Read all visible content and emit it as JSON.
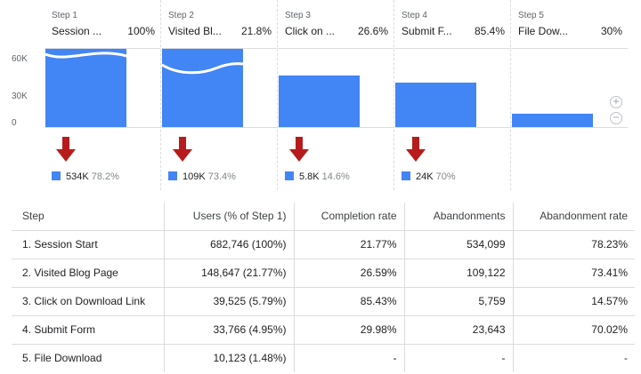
{
  "funnel": {
    "y_axis_ticks": [
      "60K",
      "30K",
      "0"
    ],
    "zoom_in_icon": "plus-circle-icon",
    "zoom_out_icon": "minus-circle-icon",
    "arrow_icon": "down-arrow-icon",
    "colors": {
      "bar": "#4285f4",
      "arrow": "#b71c1c"
    },
    "steps": [
      {
        "step_label": "Step 1",
        "name": "Session ...",
        "percent": "100%",
        "drop_value": "534K",
        "drop_percent": "78.2%"
      },
      {
        "step_label": "Step 2",
        "name": "Visited Bl...",
        "percent": "21.8%",
        "drop_value": "109K",
        "drop_percent": "73.4%"
      },
      {
        "step_label": "Step 3",
        "name": "Click on ...",
        "percent": "26.6%",
        "drop_value": "5.8K",
        "drop_percent": "14.6%"
      },
      {
        "step_label": "Step 4",
        "name": "Submit F...",
        "percent": "85.4%",
        "drop_value": "24K",
        "drop_percent": "70%"
      },
      {
        "step_label": "Step 5",
        "name": "File Dow...",
        "percent": "30%"
      }
    ]
  },
  "table": {
    "headers": [
      "Step",
      "Users (% of Step 1)",
      "Completion rate",
      "Abandonments",
      "Abandonment rate"
    ],
    "rows": [
      [
        "1. Session Start",
        "682,746 (100%)",
        "21.77%",
        "534,099",
        "78.23%"
      ],
      [
        "2. Visited Blog Page",
        "148,647 (21.77%)",
        "26.59%",
        "109,122",
        "73.41%"
      ],
      [
        "3. Click on Download Link",
        "39,525 (5.79%)",
        "85.43%",
        "5,759",
        "14.57%"
      ],
      [
        "4. Submit Form",
        "33,766 (4.95%)",
        "29.98%",
        "23,643",
        "70.02%"
      ],
      [
        "5. File Download",
        "10,123 (1.48%)",
        "-",
        "-",
        "-"
      ]
    ]
  }
}
